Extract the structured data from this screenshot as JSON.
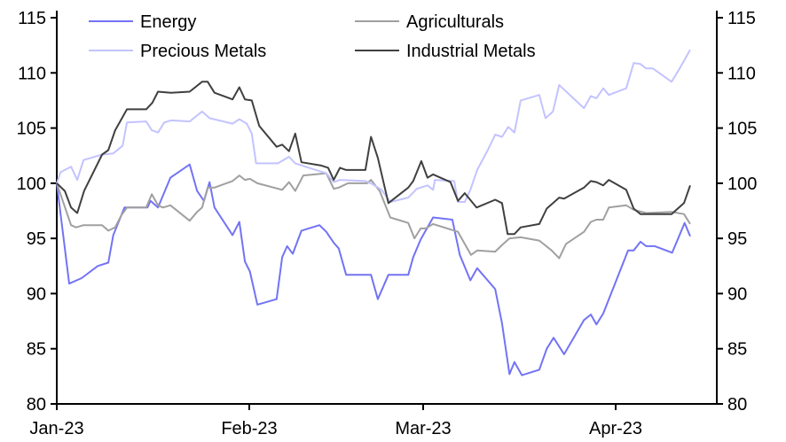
{
  "chart_data": {
    "type": "line",
    "title": "",
    "xlabel": "",
    "ylabel": "",
    "x_unit": "days since 1 Jan 2023",
    "ylim": [
      80,
      115
    ],
    "yticks": [
      80,
      85,
      90,
      95,
      100,
      105,
      110,
      115
    ],
    "ytick_labels": [
      "80",
      "85",
      "90",
      "95",
      "100",
      "105",
      "110",
      "115"
    ],
    "xlim": [
      0,
      102
    ],
    "xticks": [
      {
        "label": "Jan-23",
        "day": 0
      },
      {
        "label": "Feb-23",
        "day": 31
      },
      {
        "label": "Mar-23",
        "day": 59
      },
      {
        "label": "Apr-23",
        "day": 90
      }
    ],
    "grid": false,
    "legend_placement": "top",
    "series": [
      {
        "name": "Energy",
        "color": "#7373f5",
        "x": [
          0,
          2,
          4,
          6.6,
          8.3,
          9.1,
          10.9,
          14.6,
          15.1,
          16.3,
          18.3,
          21.4,
          22.6,
          23.7,
          24.6,
          25.4,
          28.3,
          29.4,
          30.3,
          31.1,
          32.3,
          35.4,
          36.3,
          37.1,
          38,
          39.4,
          42.3,
          43.4,
          44.6,
          45.4,
          46.6,
          50.6,
          51.7,
          53.4,
          56.6,
          57.4,
          58.6,
          59.4,
          60.6,
          63.7,
          64.9,
          66.6,
          67.7,
          70.6,
          71.7,
          72.9,
          73.7,
          74.9,
          77.7,
          78.9,
          80,
          81.7,
          84.9,
          86,
          86.9,
          88,
          92,
          92.9,
          94,
          94.9,
          96.3,
          99.1,
          101.1,
          102
        ],
        "y": [
          100,
          90.9,
          91.4,
          92.5,
          92.8,
          95.3,
          97.8,
          97.8,
          98.4,
          97.8,
          100.5,
          101.7,
          99.3,
          98.4,
          100.1,
          97.8,
          95.3,
          96.5,
          92.9,
          92.0,
          89.0,
          89.5,
          93.3,
          94.3,
          93.6,
          95.7,
          96.2,
          95.6,
          94.6,
          94.1,
          91.7,
          91.7,
          89.5,
          91.7,
          91.7,
          93.3,
          94.9,
          95.7,
          96.9,
          96.7,
          93.5,
          91.2,
          92.3,
          90.4,
          87.3,
          82.7,
          83.8,
          82.6,
          83.1,
          85.0,
          86.0,
          84.5,
          87.6,
          88.1,
          87.2,
          88.2,
          93.9,
          93.9,
          94.7,
          94.3,
          94.3,
          93.7,
          96.4,
          95.2
        ]
      },
      {
        "name": "Agriculturals",
        "color": "#a0a0a0",
        "x": [
          0,
          2.3,
          3.1,
          4.3,
          7.3,
          8.3,
          9.4,
          10.4,
          11.3,
          14.4,
          15.3,
          16.3,
          17.1,
          18.3,
          21.4,
          22.6,
          23.4,
          24.3,
          25.4,
          28.3,
          29.4,
          30.3,
          31.1,
          32.3,
          36.3,
          37.4,
          38.4,
          39.7,
          43.4,
          44.6,
          45.4,
          46.9,
          50,
          50.6,
          52,
          53.7,
          56.6,
          57.6,
          58.6,
          59.4,
          60.6,
          64.6,
          65.7,
          66.7,
          67.7,
          70.6,
          71.7,
          72.9,
          74.7,
          77.7,
          79.7,
          80.9,
          82,
          84.9,
          86,
          86.9,
          88,
          88.9,
          91.7,
          92.9,
          94.9,
          99,
          101,
          102
        ],
        "y": [
          100,
          96.2,
          96.0,
          96.2,
          96.2,
          95.7,
          96.0,
          97.1,
          97.8,
          97.8,
          99.0,
          98.0,
          97.8,
          98.0,
          96.6,
          97.4,
          97.8,
          99.6,
          99.6,
          100.2,
          100.7,
          100.3,
          100.4,
          100.0,
          99.4,
          100.1,
          99.3,
          100.7,
          100.9,
          99.5,
          99.6,
          100.0,
          100.0,
          100.3,
          99.3,
          96.9,
          96.4,
          95.0,
          95.9,
          95.9,
          96.3,
          95.6,
          94.5,
          93.5,
          93.9,
          93.8,
          94.4,
          95.0,
          95.1,
          94.8,
          93.9,
          93.2,
          94.5,
          95.6,
          96.5,
          96.7,
          96.7,
          97.8,
          98.0,
          97.6,
          97.3,
          97.4,
          97.2,
          96.3
        ]
      },
      {
        "name": "Precious Metals",
        "color": "#c3c3ff",
        "x": [
          0,
          0.6,
          2.3,
          3.3,
          4.3,
          7.3,
          9.1,
          10.6,
          11.3,
          14.4,
          15.3,
          16.3,
          17.3,
          18.4,
          21.4,
          23.4,
          24.6,
          28.3,
          29.4,
          30.6,
          31.4,
          32.1,
          35.6,
          37.4,
          38.4,
          40.6,
          43.4,
          44.6,
          45.6,
          49.7,
          50.9,
          52.3,
          53.7,
          56.6,
          58,
          59.7,
          60.6,
          60.9,
          64,
          64.6,
          65.7,
          66.6,
          67.7,
          69.4,
          70.6,
          71.7,
          72.7,
          73.7,
          74.7,
          77.7,
          78.7,
          79.9,
          80.9,
          84.9,
          86,
          86.9,
          88,
          88.9,
          91.7,
          92.9,
          94,
          94.9,
          96,
          99,
          100.4,
          101,
          102
        ],
        "y": [
          100,
          101.0,
          101.5,
          100.3,
          102.1,
          102.6,
          102.7,
          103.4,
          105.5,
          105.6,
          104.8,
          104.6,
          105.5,
          105.7,
          105.6,
          106.5,
          105.9,
          105.4,
          105.8,
          105.4,
          104.5,
          101.8,
          101.8,
          102.4,
          101.8,
          101.4,
          100.9,
          100.1,
          100.3,
          100.2,
          99.9,
          99.4,
          98.3,
          98.7,
          99.5,
          99.8,
          99.4,
          100.3,
          100.2,
          98.3,
          98.3,
          99.4,
          101.2,
          103.0,
          104.4,
          104.2,
          105.1,
          104.6,
          107.5,
          108.0,
          105.9,
          106.5,
          108.9,
          106.8,
          107.9,
          107.7,
          108.6,
          108.0,
          108.6,
          110.9,
          110.8,
          110.4,
          110.4,
          109.2,
          110.5,
          111.1,
          112.1
        ]
      },
      {
        "name": "Industrial Metals",
        "color": "#404040",
        "x": [
          0,
          1.3,
          2.3,
          3.3,
          4.4,
          7.3,
          8.3,
          9.4,
          11.3,
          14.4,
          15.4,
          16.3,
          18.4,
          21.4,
          23.4,
          24.3,
          25.4,
          28.3,
          29.4,
          30.3,
          31.4,
          32.6,
          35.4,
          36.3,
          37.4,
          38.4,
          39.4,
          42.6,
          43.7,
          44.6,
          45.6,
          46.6,
          49.7,
          50.6,
          51.7,
          53.4,
          56.6,
          57.4,
          58.7,
          59.7,
          60.6,
          63.4,
          64.6,
          65.7,
          67.6,
          70.6,
          71.7,
          72.6,
          73.7,
          74.7,
          77.7,
          78.9,
          80.9,
          81.7,
          84.9,
          86,
          86.9,
          88,
          88.9,
          91.7,
          92.9,
          94,
          99,
          101,
          102
        ],
        "y": [
          100,
          99.3,
          97.8,
          97.3,
          99.3,
          102.6,
          103.0,
          104.8,
          106.7,
          106.7,
          107.3,
          108.3,
          108.2,
          108.3,
          109.2,
          109.2,
          108.2,
          107.6,
          108.7,
          107.6,
          107.5,
          105.2,
          103.3,
          103.5,
          102.9,
          104.5,
          101.9,
          101.6,
          101.4,
          100.3,
          101.4,
          101.2,
          101.2,
          104.2,
          102.3,
          98.2,
          99.6,
          100.2,
          102.0,
          100.5,
          100.8,
          100.1,
          98.4,
          99.1,
          97.8,
          98.5,
          98.2,
          95.4,
          95.4,
          96.0,
          96.3,
          97.7,
          98.7,
          98.6,
          99.6,
          100.2,
          100.1,
          99.8,
          100.3,
          99.4,
          97.7,
          97.2,
          97.2,
          98.2,
          99.8
        ]
      }
    ]
  }
}
